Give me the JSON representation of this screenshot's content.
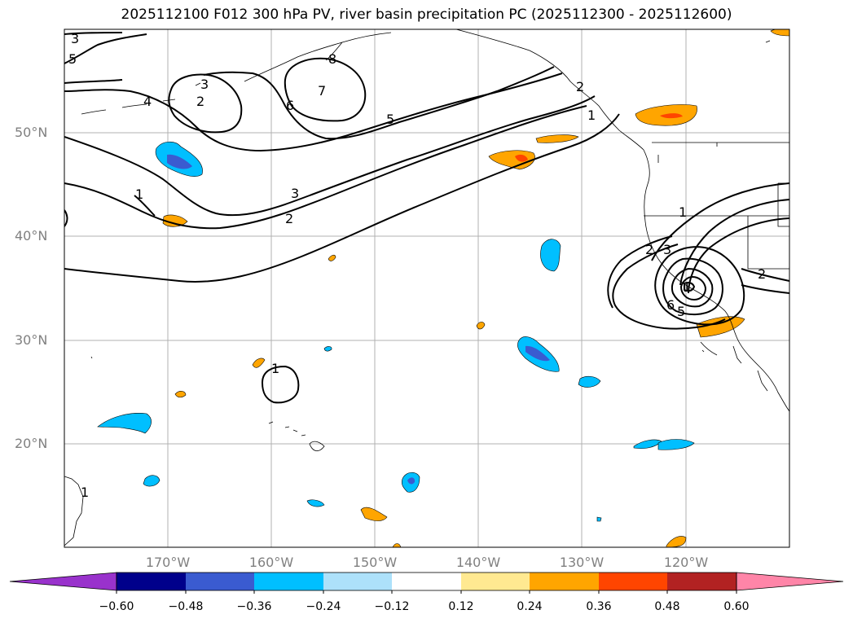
{
  "title": "2025112100 F012 300 hPa PV, river basin precipitation PC (2025112300 - 2025112600)",
  "lat_labels": [
    "50°N",
    "40°N",
    "30°N",
    "20°N"
  ],
  "lon_labels": [
    "170°W",
    "160°W",
    "150°W",
    "140°W",
    "130°W",
    "120°W"
  ],
  "contour_labels": [
    "3",
    "5",
    "4",
    "3",
    "2",
    "6",
    "7",
    "8",
    "5",
    "1",
    "1",
    "3",
    "2",
    "1",
    "1",
    "2",
    "3",
    "2",
    "1",
    "5",
    "6",
    "2",
    "1"
  ],
  "colorbar": {
    "ticks": [
      "−0.60",
      "−0.48",
      "−0.36",
      "−0.24",
      "−0.12",
      "0.12",
      "0.24",
      "0.36",
      "0.48",
      "0.60"
    ],
    "colors": [
      "#9932CC",
      "#00008B",
      "#3A5BD0",
      "#00BFFF",
      "#ADE1FA",
      "#FFFFFF",
      "#FFE991",
      "#FFA500",
      "#FF4500",
      "#B22222",
      "#FF85A8"
    ]
  }
}
